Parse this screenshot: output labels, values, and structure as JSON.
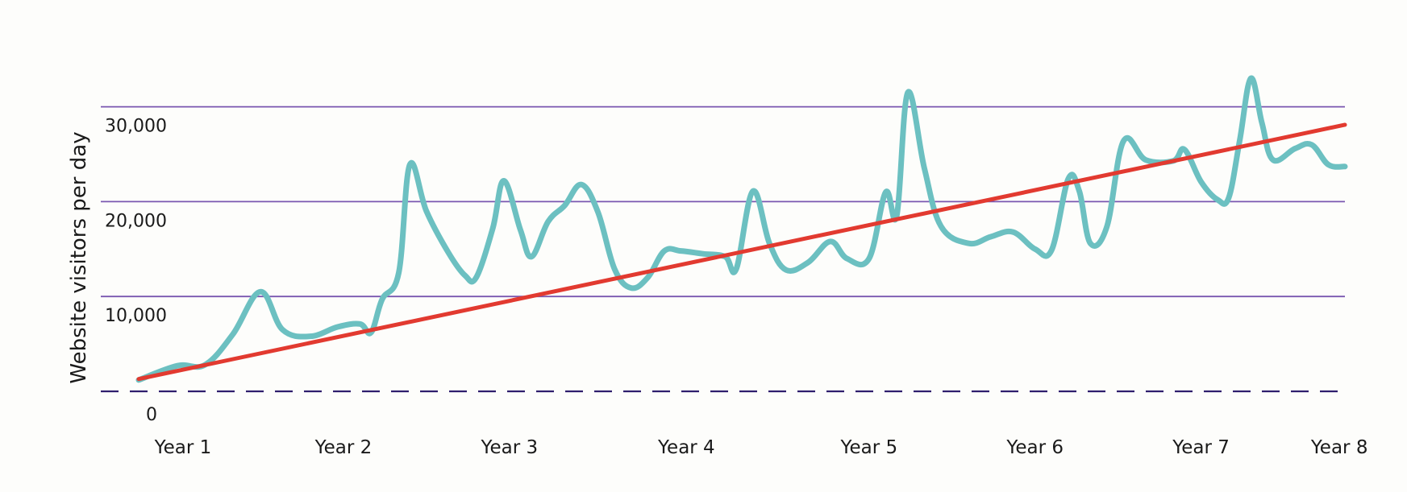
{
  "chart_data": {
    "type": "line",
    "title": "",
    "xlabel": "",
    "ylabel": "Website visitors per day",
    "categories": [
      "Year 1",
      "Year 2",
      "Year 3",
      "Year 4",
      "Year 5",
      "Year 6",
      "Year 7",
      "Year 8"
    ],
    "yticks": [
      {
        "value": 0,
        "label": "0"
      },
      {
        "value": 10000,
        "label": "10,000"
      },
      {
        "value": 20000,
        "label": "20,000"
      },
      {
        "value": 30000,
        "label": "30,000"
      }
    ],
    "ylim": [
      0,
      32000
    ],
    "grid": true,
    "zero_line_style": "dashed",
    "series": [
      {
        "color": "#6cc0c1",
        "points": [
          [
            0.0,
            1200
          ],
          [
            0.35,
            2700
          ],
          [
            0.6,
            2800
          ],
          [
            0.85,
            6000
          ],
          [
            1.1,
            10500
          ],
          [
            1.3,
            6500
          ],
          [
            1.55,
            5800
          ],
          [
            1.8,
            6800
          ],
          [
            2.0,
            7100
          ],
          [
            2.1,
            6200
          ],
          [
            2.2,
            9700
          ],
          [
            2.35,
            12500
          ],
          [
            2.45,
            23900
          ],
          [
            2.6,
            19000
          ],
          [
            2.8,
            14600
          ],
          [
            2.95,
            12200
          ],
          [
            3.05,
            12000
          ],
          [
            3.2,
            17200
          ],
          [
            3.3,
            22200
          ],
          [
            3.45,
            17000
          ],
          [
            3.55,
            14200
          ],
          [
            3.7,
            17900
          ],
          [
            3.85,
            19600
          ],
          [
            4.0,
            21800
          ],
          [
            4.15,
            18900
          ],
          [
            4.3,
            12900
          ],
          [
            4.45,
            10900
          ],
          [
            4.6,
            12000
          ],
          [
            4.75,
            14800
          ],
          [
            4.9,
            14800
          ],
          [
            5.1,
            14500
          ],
          [
            5.3,
            14200
          ],
          [
            5.4,
            12900
          ],
          [
            5.55,
            21100
          ],
          [
            5.7,
            15600
          ],
          [
            5.85,
            12800
          ],
          [
            6.05,
            13600
          ],
          [
            6.25,
            15800
          ],
          [
            6.4,
            14000
          ],
          [
            6.6,
            14000
          ],
          [
            6.75,
            21000
          ],
          [
            6.85,
            18500
          ],
          [
            6.95,
            31500
          ],
          [
            7.1,
            23500
          ],
          [
            7.25,
            17400
          ],
          [
            7.5,
            15600
          ],
          [
            7.7,
            16300
          ],
          [
            7.9,
            16800
          ],
          [
            8.1,
            15000
          ],
          [
            8.25,
            14900
          ],
          [
            8.4,
            22400
          ],
          [
            8.5,
            21100
          ],
          [
            8.6,
            15600
          ],
          [
            8.75,
            17400
          ],
          [
            8.9,
            26400
          ],
          [
            9.1,
            24400
          ],
          [
            9.35,
            24300
          ],
          [
            9.45,
            25500
          ],
          [
            9.6,
            22100
          ],
          [
            9.75,
            20200
          ],
          [
            9.85,
            20400
          ],
          [
            9.95,
            26500
          ],
          [
            10.05,
            33000
          ],
          [
            10.15,
            28300
          ],
          [
            10.25,
            24400
          ],
          [
            10.45,
            25600
          ],
          [
            10.6,
            26000
          ],
          [
            10.75,
            23900
          ],
          [
            10.9,
            23700
          ]
        ]
      },
      {
        "color": "#e23a30",
        "points": [
          [
            0.0,
            1300
          ],
          [
            10.9,
            28100
          ]
        ]
      }
    ],
    "x_category_positions": [
      0.4,
      1.85,
      3.35,
      4.95,
      6.6,
      8.1,
      9.6,
      10.85
    ]
  }
}
